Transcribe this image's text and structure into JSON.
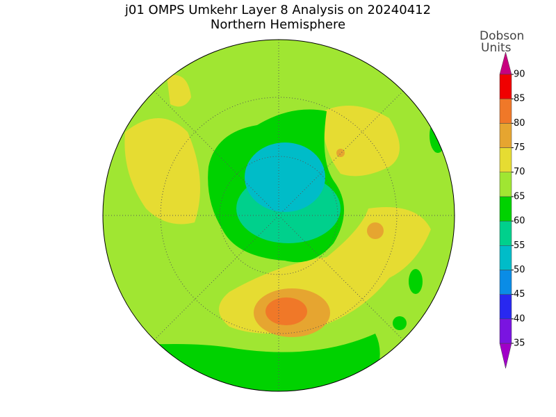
{
  "header": {
    "title": "j01 OMPS Umkehr Layer 8 Analysis on 20240412",
    "subtitle": "Northern Hemisphere"
  },
  "colorbar": {
    "title": [
      "Dobson",
      "Units"
    ],
    "range": [
      35,
      90
    ],
    "ticks": [
      35,
      40,
      45,
      50,
      55,
      60,
      65,
      70,
      75,
      80,
      85,
      90
    ],
    "colors": [
      "#7a14e0",
      "#2828f0",
      "#0a8ce6",
      "#00bcc8",
      "#00d08c",
      "#00d200",
      "#a0e632",
      "#e6dc32",
      "#e6a530",
      "#f07828",
      "#f00000"
    ],
    "under_color": "#a000c8",
    "over_color": "#c8007f"
  }
}
